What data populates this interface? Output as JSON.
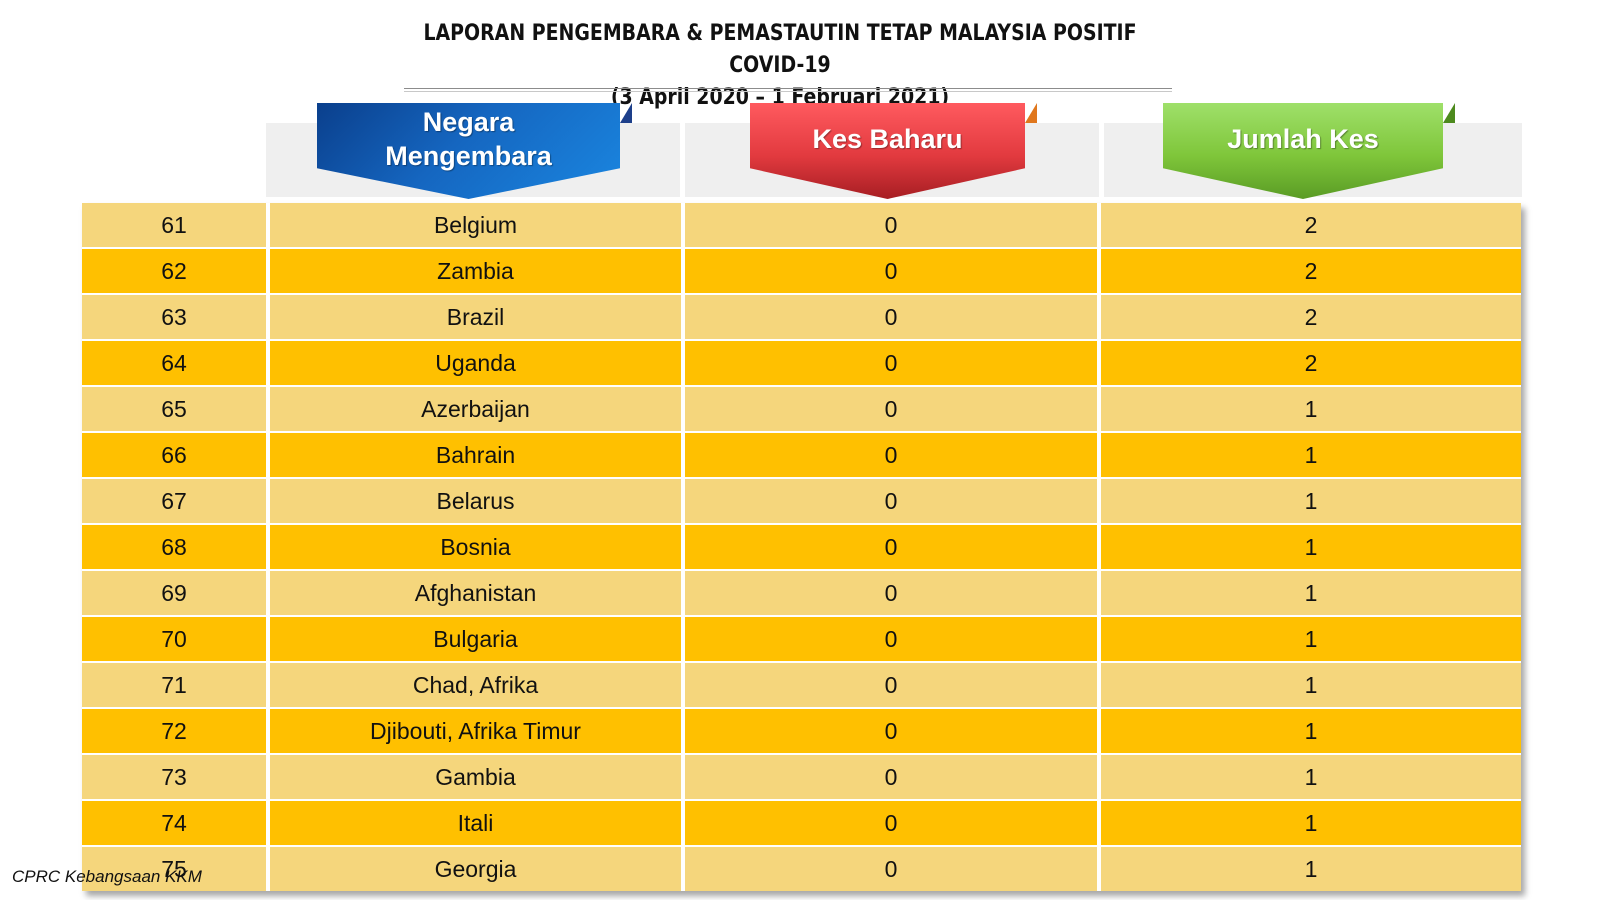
{
  "title": {
    "line1": "LAPORAN PENGEMBARA & PEMASTAUTIN TETAP MALAYSIA POSITIF COVID-19",
    "line2": "(3 April 2020 –  1 Februari 2021)"
  },
  "headers": {
    "country": "Negara Mengembara",
    "new_cases": "Kes Baharu",
    "total_cases": "Jumlah Kes"
  },
  "colors": {
    "country_banner": "#1465b8",
    "new_banner": "#e53a3f",
    "total_banner": "#7fc63a",
    "row_light": "#f5d67c",
    "row_dark": "#ffc000"
  },
  "rows": [
    {
      "no": "61",
      "country": "Belgium",
      "new": "0",
      "total": "2"
    },
    {
      "no": "62",
      "country": "Zambia",
      "new": "0",
      "total": "2"
    },
    {
      "no": "63",
      "country": "Brazil",
      "new": "0",
      "total": "2"
    },
    {
      "no": "64",
      "country": "Uganda",
      "new": "0",
      "total": "2"
    },
    {
      "no": "65",
      "country": "Azerbaijan",
      "new": "0",
      "total": "1"
    },
    {
      "no": "66",
      "country": "Bahrain",
      "new": "0",
      "total": "1"
    },
    {
      "no": "67",
      "country": "Belarus",
      "new": "0",
      "total": "1"
    },
    {
      "no": "68",
      "country": "Bosnia",
      "new": "0",
      "total": "1"
    },
    {
      "no": "69",
      "country": "Afghanistan",
      "new": "0",
      "total": "1"
    },
    {
      "no": "70",
      "country": "Bulgaria",
      "new": "0",
      "total": "1"
    },
    {
      "no": "71",
      "country": "Chad, Afrika",
      "new": "0",
      "total": "1"
    },
    {
      "no": "72",
      "country": "Djibouti, Afrika Timur",
      "new": "0",
      "total": "1"
    },
    {
      "no": "73",
      "country": "Gambia",
      "new": "0",
      "total": "1"
    },
    {
      "no": "74",
      "country": "Itali",
      "new": "0",
      "total": "1"
    },
    {
      "no": "75",
      "country": "Georgia",
      "new": "0",
      "total": "1"
    }
  ],
  "footer": "CPRC Kebangsaan KKM"
}
